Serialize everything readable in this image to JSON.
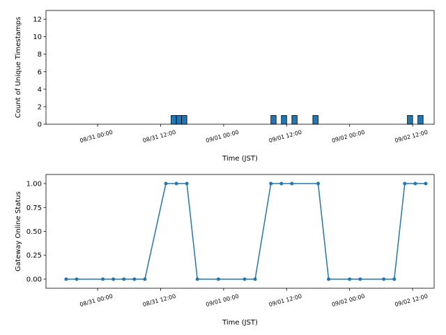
{
  "chart_data": [
    {
      "type": "bar",
      "xlabel": "Time (JST)",
      "ylabel": "Count of Unique Timestamps",
      "color": "#1f77b4",
      "edgecolor": "#000000",
      "x": [
        "08/31 14:00",
        "08/31 15:00",
        "08/31 16:00",
        "09/01 09:00",
        "09/01 11:00",
        "09/01 13:00",
        "09/01 17:00",
        "09/02 11:00",
        "09/02 13:00"
      ],
      "values": [
        1,
        1,
        1,
        1,
        1,
        1,
        1,
        1,
        1
      ],
      "xlim": [
        "08/30 14:10",
        "09/02 16:06"
      ],
      "xticks": [
        "08/31 00:00",
        "08/31 12:00",
        "09/01 00:00",
        "09/01 12:00",
        "09/02 00:00",
        "09/02 12:00"
      ],
      "ylim": [
        0,
        13
      ],
      "yticks": [
        0,
        2,
        4,
        6,
        8,
        10,
        12
      ]
    },
    {
      "type": "line",
      "xlabel": "Time (JST)",
      "ylabel": "Gateway Online Status",
      "color": "#1f77b4",
      "x": [
        "08/30 18:00",
        "08/30 20:00",
        "08/31 01:00",
        "08/31 03:00",
        "08/31 05:00",
        "08/31 07:00",
        "08/31 09:00",
        "08/31 13:00",
        "08/31 15:00",
        "08/31 17:00",
        "08/31 19:00",
        "08/31 23:00",
        "09/01 04:00",
        "09/01 06:00",
        "09/01 09:00",
        "09/01 11:00",
        "09/01 13:00",
        "09/01 18:00",
        "09/01 20:00",
        "09/02 00:00",
        "09/02 02:00",
        "09/02 06:30",
        "09/02 08:30",
        "09/02 10:30",
        "09/02 12:30",
        "09/02 14:30"
      ],
      "values": [
        0,
        0,
        0,
        0,
        0,
        0,
        0,
        1,
        1,
        1,
        0,
        0,
        0,
        0,
        1,
        1,
        1,
        1,
        0,
        0,
        0,
        0,
        0,
        1,
        1,
        1
      ],
      "xlim": [
        "08/30 14:10",
        "09/02 16:06"
      ],
      "xticks": [
        "08/31 00:00",
        "08/31 12:00",
        "09/01 00:00",
        "09/01 12:00",
        "09/02 00:00",
        "09/02 12:00"
      ],
      "ylim": [
        -0.095,
        1.095
      ],
      "yticks": [
        {
          "value": 0,
          "label": "0.00"
        },
        {
          "value": 0.25,
          "label": "0.25"
        },
        {
          "value": 0.5,
          "label": "0.50"
        },
        {
          "value": 0.75,
          "label": "0.75"
        },
        {
          "value": 1,
          "label": "1.00"
        }
      ]
    }
  ]
}
